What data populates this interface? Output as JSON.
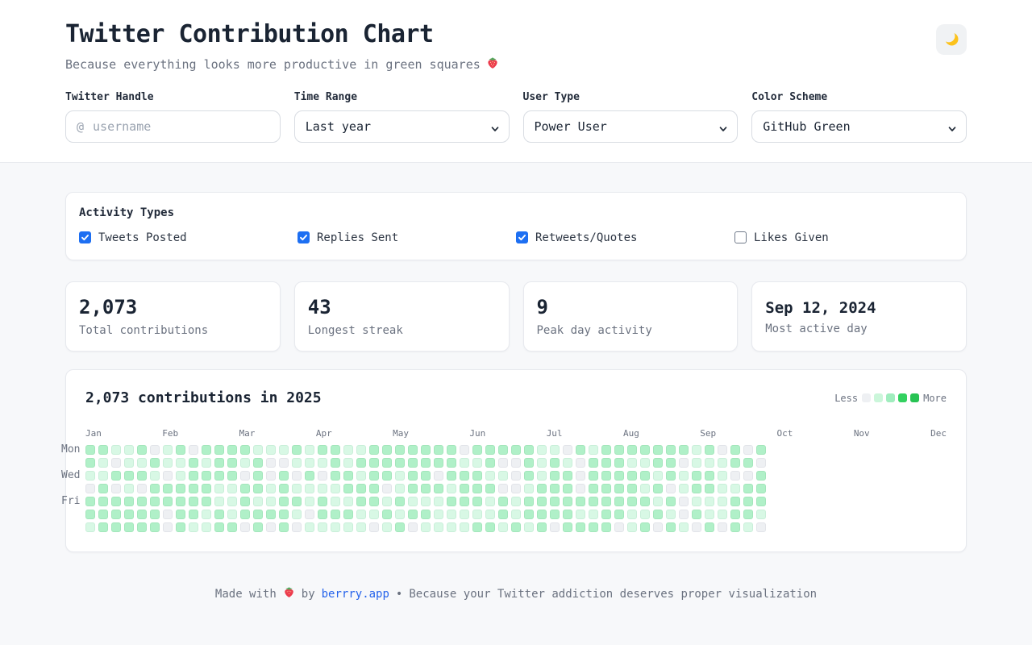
{
  "header": {
    "title": "Twitter Contribution Chart",
    "subtitle_text": "Because everything looks more productive in green squares",
    "subtitle_emoji": "strawberry",
    "theme_toggle_icon": "moon"
  },
  "controls": {
    "handle": {
      "label": "Twitter Handle",
      "prefix": "@",
      "placeholder": "username",
      "value": ""
    },
    "time_range": {
      "label": "Time Range",
      "value": "Last year"
    },
    "user_type": {
      "label": "User Type",
      "value": "Power User"
    },
    "color_scheme": {
      "label": "Color Scheme",
      "value": "GitHub Green"
    }
  },
  "activity": {
    "title": "Activity Types",
    "options": [
      {
        "label": "Tweets Posted",
        "checked": true
      },
      {
        "label": "Replies Sent",
        "checked": true
      },
      {
        "label": "Retweets/Quotes",
        "checked": true
      },
      {
        "label": "Likes Given",
        "checked": false
      }
    ]
  },
  "stats": [
    {
      "value": "2,073",
      "label": "Total contributions",
      "small": false
    },
    {
      "value": "43",
      "label": "Longest streak",
      "small": false
    },
    {
      "value": "9",
      "label": "Peak day activity",
      "small": false
    },
    {
      "value": "Sep 12, 2024",
      "label": "Most active day",
      "small": true
    }
  ],
  "chart": {
    "title": "2,073 contributions in 2025",
    "legend": {
      "less": "Less",
      "more": "More",
      "colors": [
        "#eef0f3",
        "#cbf6da",
        "#a0edbe",
        "#33d160",
        "#27c353"
      ]
    },
    "months": [
      "Jan",
      "Feb",
      "Mar",
      "Apr",
      "May",
      "Jun",
      "Jul",
      "Aug",
      "Sep",
      "Oct",
      "Nov",
      "Dec"
    ],
    "day_labels": [
      {
        "label": "Mon",
        "row": 0
      },
      {
        "label": "Wed",
        "row": 2
      },
      {
        "label": "Fri",
        "row": 4
      }
    ],
    "grid": {
      "weeks": 53,
      "days": 7,
      "cell_colors": [
        "#eef0f3",
        "#d8f8e5",
        "#b0f0c8"
      ],
      "cell_borders": [
        "#e2e4e9",
        "#c9efd9",
        "#a3e6bb"
      ],
      "weights": [
        0.12,
        0.33,
        0.55
      ],
      "seed": 20250912
    }
  },
  "footer": {
    "made_with": "Made with",
    "emoji": "strawberry",
    "by": "by",
    "link": "berrry.app",
    "separator": "•",
    "tagline": "Because your Twitter addiction deserves proper visualization"
  },
  "colors": {
    "accent_blue": "#1d6ff2",
    "link_blue": "#2563eb",
    "page_bg": "#f7f8fa",
    "text_dark": "#1a2433",
    "text_gray": "#6b7280"
  }
}
